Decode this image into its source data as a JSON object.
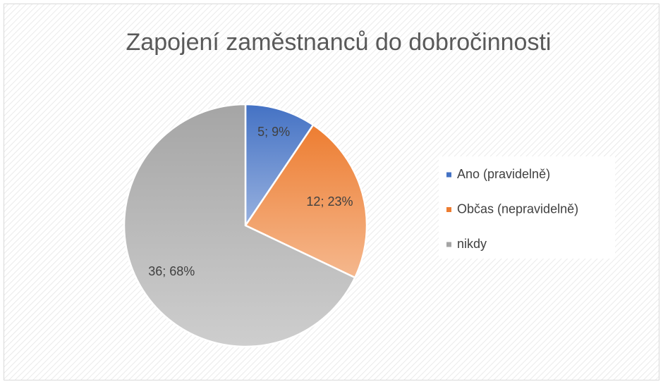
{
  "chart_data": {
    "type": "pie",
    "title": "Zapojení zaměstnanců do dobročinnosti",
    "categories": [
      "Ano (pravidelně)",
      "Občas (nepravidelně)",
      "nikdy"
    ],
    "values": [
      5,
      12,
      36
    ],
    "value_labels": [
      "5; 9%",
      "12; 23%",
      "36; 68%"
    ],
    "colors": [
      "#4472c4",
      "#ed7d31",
      "#a5a5a5"
    ],
    "legend": "right"
  }
}
